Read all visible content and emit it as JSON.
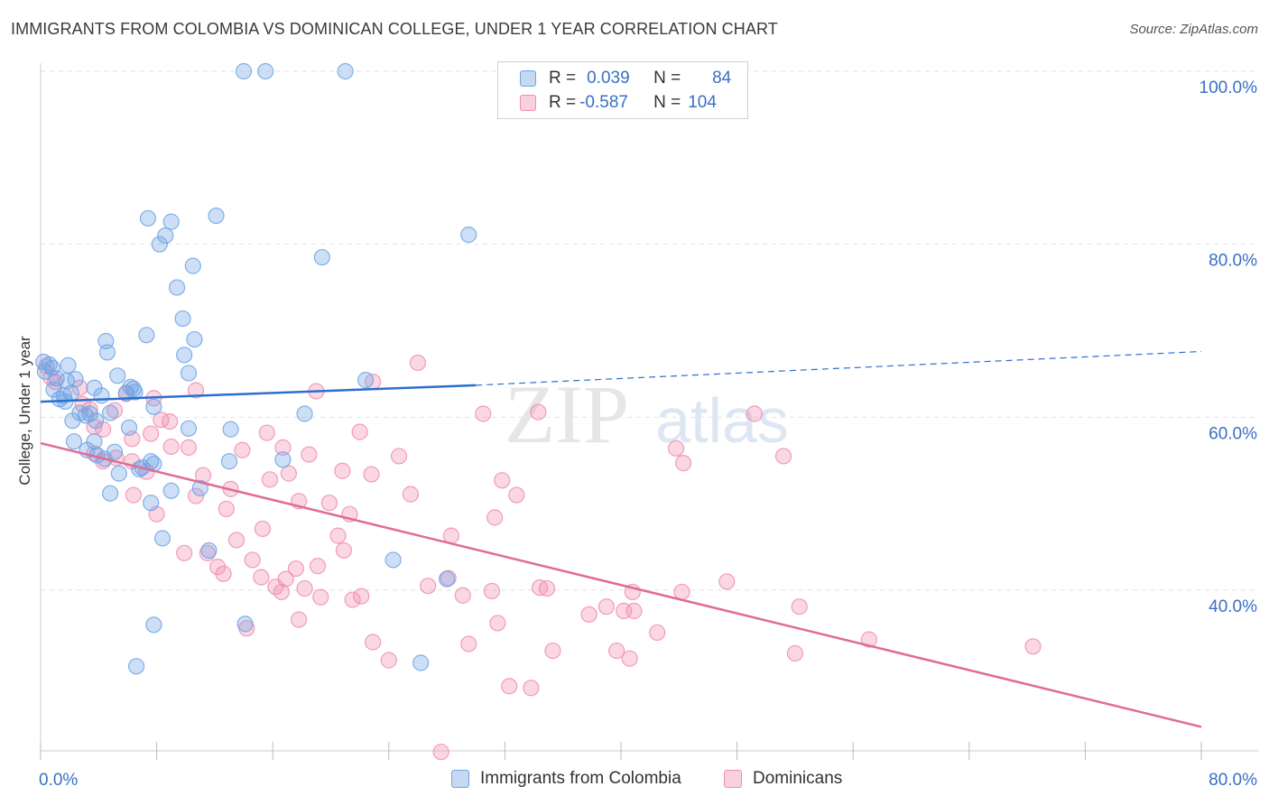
{
  "title": "IMMIGRANTS FROM COLOMBIA VS DOMINICAN COLLEGE, UNDER 1 YEAR CORRELATION CHART",
  "source": "Source: ZipAtlas.com",
  "watermark": {
    "zip": "ZIP",
    "atlas": "atlas"
  },
  "legend": {
    "rows": [
      {
        "r_label": "R =",
        "r_value": "0.039",
        "n_label": "N =",
        "n_value": "84"
      },
      {
        "r_label": "R =",
        "r_value": "-0.587",
        "n_label": "N =",
        "n_value": "104"
      }
    ]
  },
  "chart_data": {
    "type": "scatter",
    "title": "IMMIGRANTS FROM COLOMBIA VS DOMINICAN COLLEGE, UNDER 1 YEAR CORRELATION CHART",
    "xlabel": "",
    "ylabel": "College, Under 1 year",
    "xlim": [
      0,
      80
    ],
    "ylim": [
      19,
      100
    ],
    "x_tick_labels": [
      "0.0%",
      "80.0%"
    ],
    "y_ticks": [
      40,
      60,
      80,
      100
    ],
    "y_tick_labels": [
      "40.0%",
      "60.0%",
      "80.0%",
      "100.0%"
    ],
    "grid": true,
    "legend_position": "top-center",
    "colors": {
      "colombia": "#6fa3e4",
      "dominicans": "#f08db0",
      "colombia_line": "#2b6fcf",
      "dominicans_line": "#e06b96",
      "axis_text": "#3a6fc4"
    },
    "series": [
      {
        "name": "Immigrants from Colombia",
        "R": 0.039,
        "N": 84,
        "trend": {
          "x0": 0,
          "y0": 61.8,
          "x1": 30,
          "y1": 63.7,
          "dash_x1": 80,
          "dash_y1": 67.6
        },
        "points": [
          [
            14.0,
            100
          ],
          [
            15.5,
            100
          ],
          [
            21.0,
            100
          ],
          [
            7.4,
            83
          ],
          [
            9.0,
            82.6
          ],
          [
            12.1,
            83.3
          ],
          [
            8.6,
            81
          ],
          [
            8.2,
            80
          ],
          [
            19.4,
            78.5
          ],
          [
            29.5,
            81.1
          ],
          [
            10.5,
            77.5
          ],
          [
            9.4,
            75
          ],
          [
            9.8,
            71.4
          ],
          [
            7.3,
            69.5
          ],
          [
            4.5,
            68.8
          ],
          [
            10.6,
            69
          ],
          [
            4.6,
            67.5
          ],
          [
            9.9,
            67.2
          ],
          [
            0.2,
            66.4
          ],
          [
            0.6,
            66.1
          ],
          [
            0.3,
            65.3
          ],
          [
            0.8,
            65.7
          ],
          [
            1.9,
            66
          ],
          [
            10.2,
            65.1
          ],
          [
            1.1,
            64.5
          ],
          [
            1.8,
            64.2
          ],
          [
            2.4,
            64.4
          ],
          [
            5.3,
            64.8
          ],
          [
            22.4,
            64.3
          ],
          [
            0.9,
            63.2
          ],
          [
            1.6,
            62.5
          ],
          [
            2.1,
            62.8
          ],
          [
            3.7,
            63.4
          ],
          [
            6.2,
            63.5
          ],
          [
            6.4,
            63.3
          ],
          [
            5.9,
            62.8
          ],
          [
            6.5,
            62.9
          ],
          [
            4.2,
            62.5
          ],
          [
            1.3,
            62.1
          ],
          [
            1.7,
            61.8
          ],
          [
            7.8,
            61.2
          ],
          [
            3.1,
            60.2
          ],
          [
            3.4,
            60.4
          ],
          [
            4.8,
            60.5
          ],
          [
            2.2,
            59.6
          ],
          [
            10.2,
            58.7
          ],
          [
            13.1,
            58.6
          ],
          [
            3.8,
            59.6
          ],
          [
            6.1,
            58.8
          ],
          [
            18.2,
            60.4
          ],
          [
            2.3,
            57.2
          ],
          [
            3.7,
            57.2
          ],
          [
            5.1,
            56
          ],
          [
            3.2,
            56.2
          ],
          [
            3.9,
            55.6
          ],
          [
            4.4,
            55.2
          ],
          [
            16.7,
            55.1
          ],
          [
            13.0,
            54.9
          ],
          [
            7.0,
            54.2
          ],
          [
            7.8,
            54.6
          ],
          [
            5.4,
            53.5
          ],
          [
            9.0,
            51.5
          ],
          [
            4.8,
            51.2
          ],
          [
            7.6,
            50.1
          ],
          [
            11.0,
            51.8
          ],
          [
            8.4,
            46
          ],
          [
            11.6,
            44.6
          ],
          [
            24.3,
            43.5
          ],
          [
            28.0,
            41.3
          ],
          [
            7.8,
            36
          ],
          [
            14.1,
            36.1
          ],
          [
            6.6,
            31.2
          ],
          [
            26.2,
            31.6
          ],
          [
            6.8,
            54
          ],
          [
            2.7,
            60.5
          ],
          [
            7.6,
            54.9
          ]
        ]
      },
      {
        "name": "Dominicans",
        "R": -0.587,
        "N": 104,
        "trend": {
          "x0": 0,
          "y0": 57.0,
          "x1": 80,
          "y1": 24.2
        },
        "points": [
          [
            0.4,
            65.9
          ],
          [
            0.7,
            64.6
          ],
          [
            1.0,
            64.1
          ],
          [
            2.7,
            63.4
          ],
          [
            5.9,
            62.7
          ],
          [
            7.8,
            62.2
          ],
          [
            10.7,
            63.1
          ],
          [
            26.0,
            66.3
          ],
          [
            19.0,
            63
          ],
          [
            2.9,
            61.5
          ],
          [
            3.4,
            60.9
          ],
          [
            5.1,
            60.8
          ],
          [
            8.3,
            59.7
          ],
          [
            8.9,
            59.5
          ],
          [
            4.3,
            58.6
          ],
          [
            3.7,
            58.9
          ],
          [
            7.6,
            58.1
          ],
          [
            15.6,
            58.2
          ],
          [
            22.0,
            58.3
          ],
          [
            34.3,
            60.6
          ],
          [
            49.2,
            60.4
          ],
          [
            30.5,
            60.4
          ],
          [
            6.3,
            57.5
          ],
          [
            9.0,
            56.6
          ],
          [
            10.2,
            56.5
          ],
          [
            13.9,
            56.2
          ],
          [
            16.7,
            56.5
          ],
          [
            18.5,
            55.7
          ],
          [
            24.7,
            55.5
          ],
          [
            43.8,
            56.4
          ],
          [
            51.2,
            55.5
          ],
          [
            3.7,
            55.8
          ],
          [
            5.2,
            55.3
          ],
          [
            6.3,
            54.9
          ],
          [
            4.3,
            54.9
          ],
          [
            7.3,
            53.7
          ],
          [
            11.2,
            53.3
          ],
          [
            20.8,
            53.8
          ],
          [
            22.8,
            53.4
          ],
          [
            13.1,
            51.7
          ],
          [
            15.8,
            52.8
          ],
          [
            17.8,
            50.3
          ],
          [
            19.9,
            50.1
          ],
          [
            25.5,
            51.1
          ],
          [
            31.8,
            52.7
          ],
          [
            32.8,
            51.0
          ],
          [
            10.7,
            50.9
          ],
          [
            6.4,
            51
          ],
          [
            8.0,
            48.8
          ],
          [
            12.8,
            49.4
          ],
          [
            31.3,
            48.4
          ],
          [
            15.3,
            47.1
          ],
          [
            20.5,
            46.3
          ],
          [
            28.3,
            46.3
          ],
          [
            11.5,
            44.3
          ],
          [
            13.5,
            45.8
          ],
          [
            20.9,
            44.6
          ],
          [
            9.9,
            44.3
          ],
          [
            12.2,
            42.7
          ],
          [
            14.6,
            43.5
          ],
          [
            17.6,
            42.5
          ],
          [
            19.1,
            42.8
          ],
          [
            12.6,
            41.9
          ],
          [
            15.2,
            41.5
          ],
          [
            16.9,
            41.3
          ],
          [
            28.1,
            41.4
          ],
          [
            16.2,
            40.4
          ],
          [
            16.6,
            39.8
          ],
          [
            18.2,
            40.2
          ],
          [
            19.3,
            39.2
          ],
          [
            21.5,
            38.9
          ],
          [
            22.1,
            39.3
          ],
          [
            26.7,
            40.5
          ],
          [
            29.1,
            39.4
          ],
          [
            31.1,
            39.9
          ],
          [
            34.4,
            40.3
          ],
          [
            34.9,
            40.2
          ],
          [
            40.8,
            39.8
          ],
          [
            44.2,
            39.8
          ],
          [
            47.3,
            41.0
          ],
          [
            37.8,
            37.2
          ],
          [
            39.0,
            38.1
          ],
          [
            40.2,
            37.6
          ],
          [
            40.9,
            37.6
          ],
          [
            52.3,
            38.1
          ],
          [
            17.8,
            36.6
          ],
          [
            31.5,
            36.2
          ],
          [
            42.5,
            35.1
          ],
          [
            57.1,
            34.3
          ],
          [
            68.4,
            33.5
          ],
          [
            22.9,
            34.0
          ],
          [
            29.5,
            33.8
          ],
          [
            35.3,
            33.0
          ],
          [
            39.7,
            33.0
          ],
          [
            40.6,
            32.1
          ],
          [
            52.0,
            32.7
          ],
          [
            24.0,
            31.9
          ],
          [
            14.2,
            35.6
          ],
          [
            32.3,
            28.9
          ],
          [
            33.8,
            28.7
          ],
          [
            27.6,
            21.3
          ],
          [
            44.3,
            54.7
          ],
          [
            22.9,
            64.1
          ],
          [
            21.3,
            48.8
          ],
          [
            17.1,
            53.5
          ]
        ]
      }
    ]
  },
  "bottom_legend": {
    "colombia": "Immigrants from Colombia",
    "dominicans": "Dominicans"
  }
}
